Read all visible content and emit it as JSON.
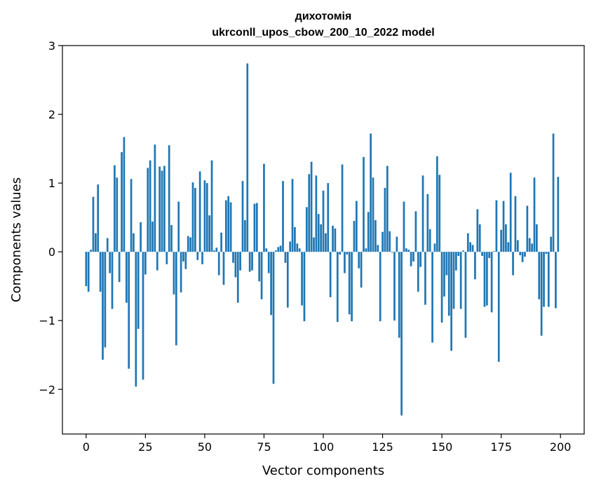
{
  "chart_data": {
    "type": "bar",
    "title_line1": "дихотомія",
    "title_line2": "ukrconll_upos_cbow_200_10_2022 model",
    "xlabel": "Vector components",
    "ylabel": "Components values",
    "xlim": [
      -10,
      210
    ],
    "ylim": [
      -2.65,
      3
    ],
    "xticks": [
      0,
      25,
      50,
      75,
      100,
      125,
      150,
      175,
      200
    ],
    "yticks": [
      -2,
      -1,
      0,
      1,
      2,
      3
    ],
    "ytick_labels": [
      "−2",
      "−1",
      "0",
      "1",
      "2",
      "3"
    ],
    "bar_color": "#1f77b4",
    "values": [
      -0.5,
      -0.58,
      0.03,
      0.8,
      0.27,
      0.98,
      -0.58,
      -1.57,
      -1.39,
      0.2,
      -0.31,
      -0.83,
      1.26,
      1.08,
      -0.44,
      1.45,
      1.67,
      -0.74,
      -1.7,
      1.06,
      0.27,
      -1.96,
      -1.12,
      0.43,
      -1.86,
      -0.33,
      1.22,
      1.33,
      0.44,
      1.56,
      -0.27,
      1.24,
      1.18,
      1.25,
      -0.18,
      1.55,
      0.39,
      -0.62,
      -1.36,
      0.73,
      -0.59,
      -0.14,
      -0.25,
      0.23,
      0.21,
      1.01,
      0.93,
      -0.12,
      1.17,
      -0.18,
      1.04,
      1.0,
      0.53,
      1.33,
      0.02,
      0.06,
      -0.34,
      0.28,
      -0.48,
      0.75,
      0.81,
      0.72,
      -0.16,
      -0.37,
      -0.74,
      -0.27,
      1.03,
      0.46,
      2.74,
      -0.29,
      -0.27,
      0.7,
      0.71,
      -0.43,
      -0.69,
      1.28,
      0.05,
      -0.31,
      -0.92,
      -1.92,
      0.02,
      0.07,
      0.09,
      1.03,
      -0.16,
      -0.81,
      0.15,
      1.06,
      0.36,
      0.12,
      0.05,
      -0.78,
      -1.01,
      0.65,
      1.13,
      1.31,
      0.21,
      1.11,
      0.55,
      0.4,
      0.89,
      0.27,
      1.0,
      -0.66,
      0.38,
      0.34,
      -1.02,
      -0.04,
      1.27,
      -0.31,
      -0.04,
      -0.91,
      -1.01,
      0.45,
      0.74,
      -0.24,
      -0.52,
      1.38,
      0.05,
      0.58,
      1.72,
      1.08,
      0.46,
      0.1,
      -1.01,
      0.29,
      0.93,
      1.25,
      0.3,
      -0.01,
      -1.0,
      0.22,
      -1.25,
      -2.38,
      0.73,
      0.05,
      0.03,
      -0.21,
      -0.14,
      0.59,
      -0.58,
      -0.22,
      1.11,
      -0.77,
      0.84,
      0.33,
      -1.32,
      0.12,
      1.39,
      1.12,
      -1.03,
      -0.65,
      -0.34,
      -0.93,
      -1.44,
      -0.83,
      -0.27,
      -0.06,
      -0.83,
      0.02,
      -1.25,
      0.27,
      0.14,
      0.1,
      -0.4,
      0.62,
      0.4,
      -0.06,
      -0.8,
      -0.78,
      -0.09,
      -0.88,
      0.01,
      0.75,
      -1.6,
      0.32,
      0.74,
      0.4,
      0.14,
      1.15,
      -0.34,
      0.81,
      0.17,
      -0.05,
      -0.15,
      -0.07,
      0.67,
      0.2,
      0.12,
      1.08,
      0.4,
      -0.69,
      -1.22,
      -0.8,
      -0.03,
      -0.8,
      0.22,
      1.72,
      -0.82,
      1.09
    ]
  }
}
